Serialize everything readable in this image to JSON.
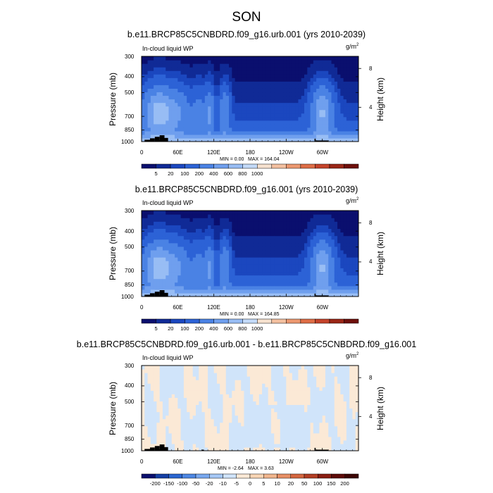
{
  "title": "SON",
  "chart_data": [
    {
      "type": "heatmap",
      "title": "b.e11.BRCP85C5CNBDRD.f09_g16.urb.001 (yrs 2010-2039)",
      "variable": "In-cloud liquid WP",
      "units": "g/m",
      "units_exp": "2",
      "ylabel": "Pressure (mb)",
      "ylabel_right": "Height (km)",
      "yticks": [
        "300",
        "400",
        "500",
        "700",
        "850",
        "1000"
      ],
      "yticks_right": [
        "8",
        "4"
      ],
      "xticks": [
        "0",
        "60E",
        "120E",
        "180",
        "120W",
        "60W"
      ],
      "xlim": [
        0,
        360
      ],
      "ylim": [
        1000,
        300
      ],
      "min_label": "MIN =   0.00",
      "max_label": "MAX = 164.04",
      "min": 0.0,
      "max": 164.04,
      "colorbar_labels": [
        "5",
        "20",
        "100",
        "200",
        "400",
        "600",
        "800",
        "1000"
      ]
    },
    {
      "type": "heatmap",
      "title": "b.e11.BRCP85C5CNBDRD.f09_g16.001 (yrs 2010-2039)",
      "variable": "In-cloud liquid WP",
      "units": "g/m",
      "units_exp": "2",
      "ylabel": "Pressure (mb)",
      "ylabel_right": "Height (km)",
      "yticks": [
        "300",
        "400",
        "500",
        "700",
        "850",
        "1000"
      ],
      "yticks_right": [
        "8",
        "4"
      ],
      "xticks": [
        "0",
        "60E",
        "120E",
        "180",
        "120W",
        "60W"
      ],
      "xlim": [
        0,
        360
      ],
      "ylim": [
        1000,
        300
      ],
      "min_label": "MIN =   0.00",
      "max_label": "MAX = 164.85",
      "min": 0.0,
      "max": 164.85,
      "colorbar_labels": [
        "5",
        "20",
        "100",
        "200",
        "400",
        "600",
        "800",
        "1000"
      ]
    },
    {
      "type": "heatmap",
      "title": "b.e11.BRCP85C5CNBDRD.f09_g16.urb.001 - b.e11.BRCP85C5CNBDRD.f09_g16.001",
      "variable": "In-cloud liquid WP",
      "units": "g/m",
      "units_exp": "2",
      "ylabel": "Pressure (mb)",
      "ylabel_right": "Height (km)",
      "yticks": [
        "300",
        "400",
        "500",
        "700",
        "850",
        "1000"
      ],
      "yticks_right": [
        "8",
        "4"
      ],
      "xticks": [
        "0",
        "60E",
        "120E",
        "180",
        "120W",
        "60W"
      ],
      "xlim": [
        0,
        360
      ],
      "ylim": [
        1000,
        300
      ],
      "min_label": "MIN =  -2.64",
      "max_label": "MAX =   3.63",
      "min": -2.64,
      "max": 3.63,
      "colorbar_labels": [
        "-200",
        "-150",
        "-100",
        "-50",
        "-20",
        "-10",
        "-5",
        "0",
        "5",
        "10",
        "20",
        "50",
        "100",
        "150",
        "200"
      ]
    }
  ],
  "colors": {
    "mean_scale": [
      "#0a0f6e",
      "#102a96",
      "#1b47bf",
      "#2c62d6",
      "#4a82e4",
      "#6f9fee",
      "#98bdf4",
      "#c3daf8",
      "#f6e1cf",
      "#f3c0a0",
      "#ec9870",
      "#de6d46",
      "#c4432a",
      "#9a2616",
      "#6e0f0a"
    ],
    "diff_scale": [
      "#0a0f6e",
      "#143fa5",
      "#2a66d0",
      "#4d87e3",
      "#78a8ef",
      "#a6c8f6",
      "#d0e4fa",
      "#fbe9d6",
      "#f8d5b5",
      "#f1b68e",
      "#e78f65",
      "#d4663f",
      "#b33e24",
      "#8a1d12",
      "#5e0b08",
      "#3c0503"
    ],
    "terrain": "#000000"
  }
}
